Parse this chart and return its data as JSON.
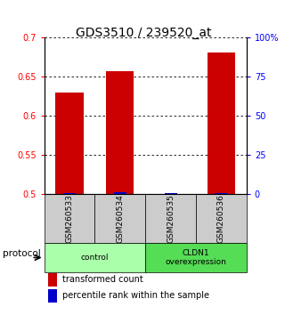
{
  "title": "GDS3510 / 239520_at",
  "samples": [
    "GSM260533",
    "GSM260534",
    "GSM260535",
    "GSM260536"
  ],
  "red_values": [
    0.63,
    0.657,
    0.5,
    0.681
  ],
  "blue_values": [
    0.5015,
    0.502,
    0.5007,
    0.5015
  ],
  "ylim": [
    0.5,
    0.7
  ],
  "yticks": [
    0.5,
    0.55,
    0.6,
    0.65,
    0.7
  ],
  "ytick_labels": [
    "0.5",
    "0.55",
    "0.6",
    "0.65",
    "0.7"
  ],
  "y2ticks": [
    0,
    25,
    50,
    75,
    100
  ],
  "y2tick_labels": [
    "0",
    "25",
    "50",
    "75",
    "100%"
  ],
  "groups": [
    {
      "label": "control",
      "samples": [
        0,
        1
      ],
      "color": "#aaffaa"
    },
    {
      "label": "CLDN1\noverexpression",
      "samples": [
        2,
        3
      ],
      "color": "#55dd55"
    }
  ],
  "protocol_label": "protocol",
  "bar_width": 0.55,
  "red_color": "#cc0000",
  "blue_color": "#0000cc",
  "background_sample": "#cccccc",
  "title_fontsize": 10,
  "axis_fontsize": 7,
  "legend_fontsize": 7,
  "sample_label_fontsize": 6.5
}
